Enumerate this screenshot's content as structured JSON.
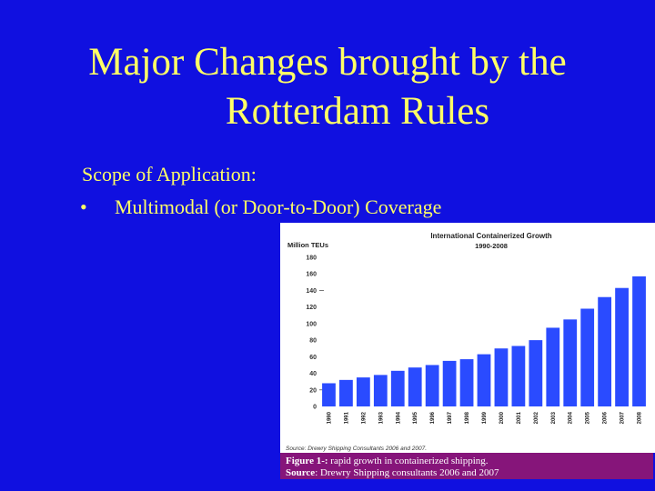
{
  "slide": {
    "title_line1": "Major Changes brought by the",
    "title_line2": "Rotterdam Rules",
    "scope_label": "Scope of Application:",
    "bullet_symbol": "•",
    "bullet_text": "Multimodal (or Door-to-Door) Coverage"
  },
  "caption": {
    "figure_label": "Figure 1-:",
    "figure_text": " rapid growth in containerized shipping.",
    "source_label": "Source",
    "source_text": ": Drewry Shipping consultants 2006 and 2007"
  },
  "colors": {
    "background": "#1010e0",
    "title_text": "#ffff66",
    "bar": "#2a4bff",
    "caption_bg": "#86157a"
  },
  "chart_data": {
    "type": "bar",
    "title": "International Containerized Growth",
    "subtitle": "1990-2008",
    "ylabel": "Million TEUs",
    "source_note": "Source: Drewry Shipping Consultants 2006 and 2007.",
    "ylim": [
      0,
      180
    ],
    "yticks": [
      0,
      20,
      40,
      60,
      80,
      100,
      120,
      140,
      160,
      180
    ],
    "grid": false,
    "categories": [
      "1990",
      "1991",
      "1992",
      "1993",
      "1994",
      "1995",
      "1996",
      "1997",
      "1998",
      "1999",
      "2000",
      "2001",
      "2002",
      "2003",
      "2004",
      "2005",
      "2006",
      "2007",
      "2008"
    ],
    "values": [
      28,
      32,
      35,
      38,
      43,
      47,
      50,
      55,
      57,
      63,
      70,
      73,
      80,
      95,
      105,
      118,
      132,
      143,
      157
    ]
  }
}
